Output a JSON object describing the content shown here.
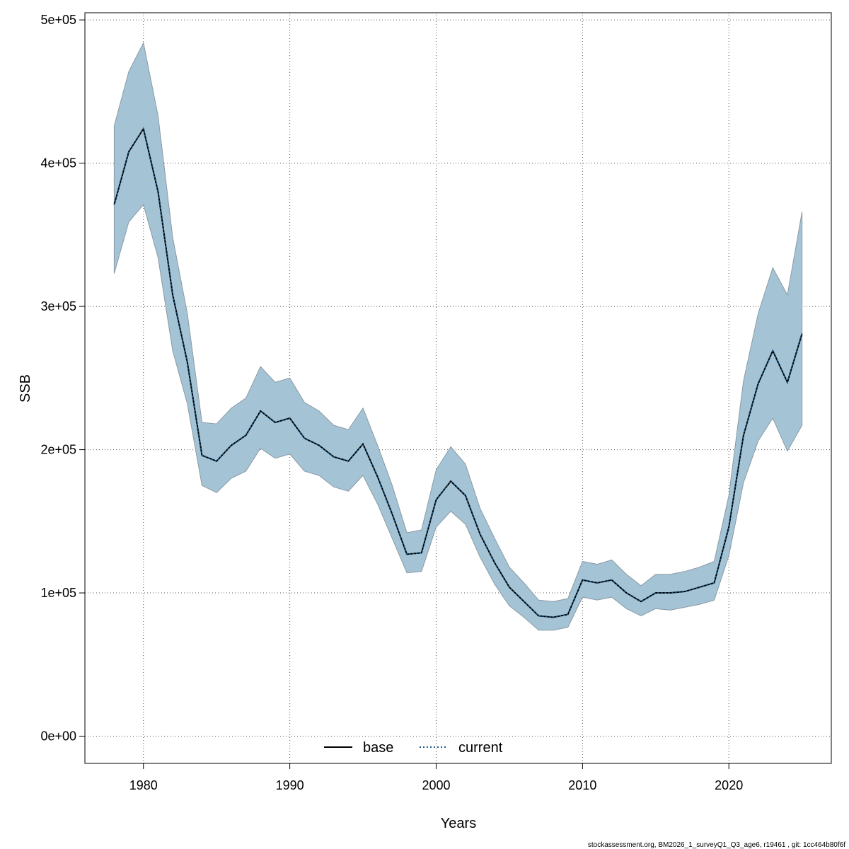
{
  "chart_data": {
    "type": "line",
    "xlabel": "Years",
    "ylabel": "SSB",
    "xlim": [
      1976,
      2027
    ],
    "ylim": [
      -19000,
      505000
    ],
    "x_ticks": [
      1980,
      1990,
      2000,
      2010,
      2020
    ],
    "x_tick_labels": [
      "1980",
      "1990",
      "2000",
      "2010",
      "2020"
    ],
    "y_ticks": [
      0,
      100000,
      200000,
      300000,
      400000,
      500000
    ],
    "y_tick_labels": [
      "0e+00",
      "1e+05",
      "2e+05",
      "3e+05",
      "4e+05",
      "5e+05"
    ],
    "grid": true,
    "legend_position": "bottom-center",
    "legend": [
      {
        "label": "base",
        "style": "solid",
        "color": "#000000"
      },
      {
        "label": "current",
        "style": "dotted",
        "color": "#1a5a8a"
      }
    ],
    "x": [
      1978,
      1979,
      1980,
      1981,
      1982,
      1983,
      1984,
      1985,
      1986,
      1987,
      1988,
      1989,
      1990,
      1991,
      1992,
      1993,
      1994,
      1995,
      1996,
      1997,
      1998,
      1999,
      2000,
      2001,
      2002,
      2003,
      2004,
      2005,
      2006,
      2007,
      2008,
      2009,
      2010,
      2011,
      2012,
      2013,
      2014,
      2015,
      2016,
      2017,
      2018,
      2019,
      2020,
      2021,
      2022,
      2023,
      2024,
      2025
    ],
    "series": [
      {
        "name": "base",
        "color": "#000000",
        "values": [
          371000,
          408000,
          424000,
          380000,
          308000,
          261000,
          196000,
          192000,
          203000,
          210000,
          227000,
          219000,
          222000,
          208000,
          203000,
          195000,
          192000,
          204000,
          181000,
          155000,
          127000,
          128000,
          165000,
          178000,
          168000,
          141000,
          121000,
          104000,
          94000,
          84000,
          83000,
          85000,
          109000,
          107000,
          109000,
          100000,
          94000,
          100000,
          100000,
          101000,
          104000,
          107000,
          146000,
          210000,
          246000,
          269000,
          247000,
          281000
        ]
      },
      {
        "name": "current",
        "color": "#1a5a8a",
        "values": [
          371000,
          408000,
          424000,
          380000,
          308000,
          261000,
          196000,
          192000,
          203000,
          210000,
          227000,
          219000,
          222000,
          208000,
          203000,
          195000,
          192000,
          204000,
          181000,
          155000,
          127000,
          128000,
          165000,
          178000,
          168000,
          141000,
          121000,
          104000,
          94000,
          84000,
          83000,
          85000,
          109000,
          107000,
          109000,
          100000,
          94000,
          100000,
          100000,
          101000,
          104000,
          107000,
          146000,
          210000,
          246000,
          269000,
          247000,
          281000
        ]
      }
    ],
    "confidence_band": {
      "fill_color": "#a4c4d6",
      "edge_color": "#8a9aa4",
      "lower": [
        323000,
        359000,
        371000,
        334000,
        269000,
        232000,
        175000,
        170000,
        180000,
        185000,
        201000,
        194000,
        197000,
        185000,
        182000,
        174000,
        171000,
        182000,
        162000,
        138000,
        114000,
        115000,
        146000,
        157000,
        148000,
        125000,
        106000,
        91000,
        83000,
        74000,
        74000,
        76000,
        97000,
        95000,
        97000,
        89000,
        84000,
        89000,
        88000,
        90000,
        92000,
        95000,
        126000,
        177000,
        206000,
        222000,
        199000,
        217000
      ],
      "upper": [
        426000,
        464000,
        484000,
        433000,
        348000,
        295000,
        219000,
        218000,
        229000,
        236000,
        258000,
        247000,
        250000,
        233000,
        227000,
        217000,
        214000,
        229000,
        203000,
        175000,
        142000,
        144000,
        186000,
        202000,
        190000,
        159000,
        138000,
        118000,
        107000,
        95000,
        94000,
        96000,
        122000,
        120000,
        123000,
        113000,
        105000,
        113000,
        113000,
        115000,
        118000,
        122000,
        168000,
        248000,
        295000,
        327000,
        308000,
        366000
      ]
    }
  },
  "footer": "stockassessment.org, BM2026_1_surveyQ1_Q3_age6, r19461 , git: 1cc464b80f6f"
}
